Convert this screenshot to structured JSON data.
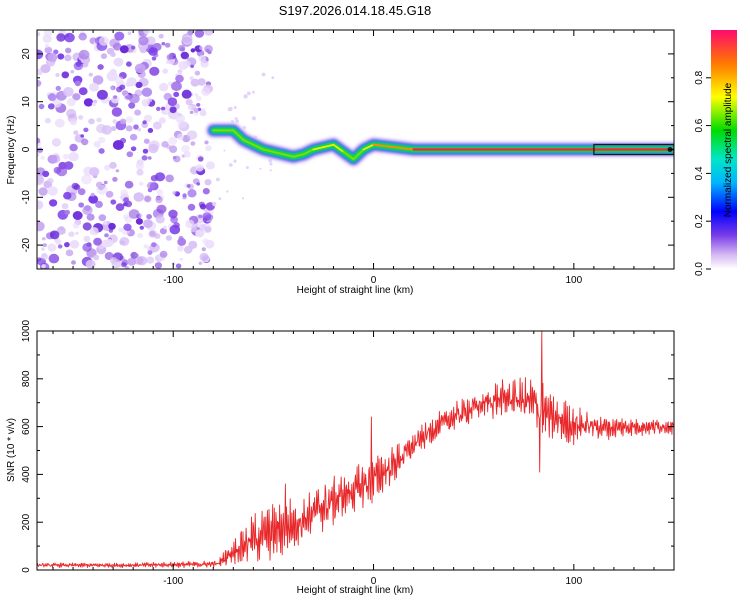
{
  "figure_title": "S197.2026.014.18.45.G18",
  "chart_data": [
    {
      "type": "heatmap",
      "title": "S197.2026.014.18.45.G18",
      "xlabel": "Height of straight line (km)",
      "ylabel": "Frequency (Hz)",
      "xlim": [
        -168,
        150
      ],
      "ylim": [
        -25,
        25
      ],
      "xticks": [
        -100,
        0,
        100
      ],
      "yticks": [
        -20,
        -10,
        0,
        10,
        20
      ],
      "colorbar": {
        "label": "Normalized spectral amplitude",
        "range": [
          0,
          1
        ],
        "ticks": [
          "0.0",
          "0.2",
          "0.4",
          "0.6",
          "0.8"
        ]
      },
      "noise_region_x": [
        -168,
        -80
      ],
      "signal_track": {
        "x": [
          -80,
          -70,
          -65,
          -60,
          -55,
          -50,
          -45,
          -40,
          -35,
          -30,
          -25,
          -20,
          -15,
          -10,
          -5,
          0,
          10,
          20,
          40,
          60,
          80,
          100,
          110,
          150
        ],
        "freq": [
          4,
          4,
          2,
          1,
          0,
          -0.5,
          -1,
          -1.5,
          -1,
          0,
          0.5,
          1,
          -0.5,
          -2,
          0,
          1,
          0.5,
          0,
          0,
          0,
          0,
          0,
          0,
          0
        ],
        "peak_amplitude": [
          0.45,
          0.55,
          0.4,
          0.4,
          0.45,
          0.55,
          0.6,
          0.6,
          0.55,
          0.6,
          0.65,
          0.7,
          0.55,
          0.5,
          0.65,
          0.8,
          0.85,
          0.9,
          0.95,
          1.0,
          1.0,
          1.0,
          1.0,
          1.0
        ]
      }
    },
    {
      "type": "line",
      "xlabel": "Height of straight line (km)",
      "ylabel": "SNR (10 * v/v)",
      "xlim": [
        -168,
        150
      ],
      "ylim": [
        0,
        1000
      ],
      "xticks": [
        -100,
        0,
        100
      ],
      "yticks": [
        0,
        200,
        400,
        600,
        800,
        1000
      ],
      "series": [
        {
          "name": "SNR",
          "color": "#e8282a",
          "envelope": {
            "x": [
              -168,
              -120,
              -78,
              -70,
              -60,
              -50,
              -40,
              -30,
              -20,
              -10,
              0,
              10,
              20,
              30,
              40,
              50,
              60,
              70,
              80,
              85,
              90,
              100,
              110,
              120,
              130,
              140,
              150
            ],
            "base": [
              20,
              20,
              25,
              80,
              130,
              160,
              190,
              240,
              290,
              330,
              380,
              440,
              520,
              590,
              640,
              680,
              710,
              720,
              700,
              660,
              630,
              610,
              600,
              595,
              600,
              600,
              605
            ],
            "amplitude": [
              10,
              10,
              15,
              60,
              110,
              120,
              120,
              110,
              110,
              100,
              110,
              80,
              60,
              60,
              60,
              70,
              80,
              90,
              110,
              150,
              110,
              90,
              60,
              50,
              40,
              40,
              40
            ]
          },
          "notable_points": [
            {
              "x": -44,
              "y": 360
            },
            {
              "x": -1,
              "y": 640
            },
            {
              "x": 84,
              "y": 1010
            },
            {
              "x": 83,
              "y": 410
            }
          ]
        }
      ]
    }
  ]
}
